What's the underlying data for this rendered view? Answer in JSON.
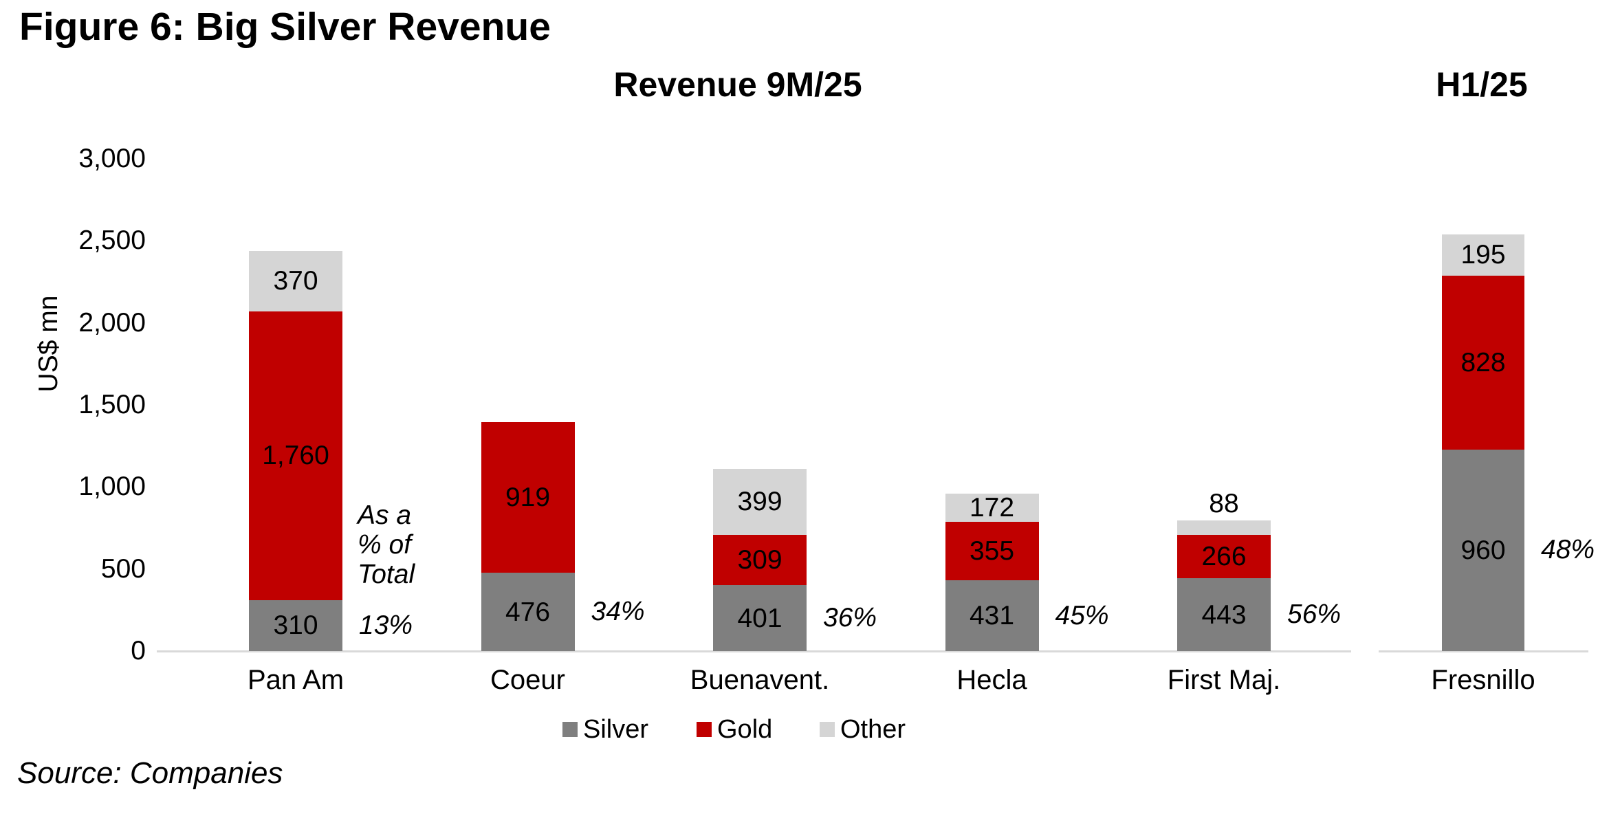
{
  "figure": {
    "title": "Figure 6: Big Silver Revenue",
    "source": "Source: Companies"
  },
  "annotation": {
    "lines": [
      "As a",
      "% of",
      "Total"
    ]
  },
  "colors": {
    "silver": "#7F7F7F",
    "gold": "#C00000",
    "other": "#D5D5D5",
    "axis_line": "#D9D9D9",
    "text": "#000000"
  },
  "chart_data": [
    {
      "type": "bar",
      "stacked": true,
      "panel_title": "Revenue 9M/25",
      "ylabel": "US$ mn",
      "ylim": [
        0,
        3000
      ],
      "grid": false,
      "legend_position": "bottom",
      "yticks": [
        {
          "value": 0,
          "label": "0"
        },
        {
          "value": 500,
          "label": "500"
        },
        {
          "value": 1000,
          "label": "1,000"
        },
        {
          "value": 1500,
          "label": "1,500"
        },
        {
          "value": 2000,
          "label": "2,000"
        },
        {
          "value": 2500,
          "label": "2,500"
        },
        {
          "value": 3000,
          "label": "3,000"
        }
      ],
      "categories": [
        "Pan Am",
        "Coeur",
        "Buenavent.",
        "Hecla",
        "First Maj."
      ],
      "series": [
        {
          "name": "Silver",
          "color": "#7F7F7F",
          "values": [
            310,
            476,
            401,
            431,
            443
          ],
          "labels": [
            "310",
            "476",
            "401",
            "431",
            "443"
          ]
        },
        {
          "name": "Gold",
          "color": "#C00000",
          "values": [
            1760,
            919,
            309,
            355,
            266
          ],
          "labels": [
            "1,760",
            "919",
            "309",
            "355",
            "266"
          ]
        },
        {
          "name": "Other",
          "color": "#D5D5D5",
          "values": [
            370,
            0,
            399,
            172,
            88
          ],
          "labels": [
            "370",
            "",
            "399",
            "172",
            "88"
          ]
        }
      ],
      "pct_of_total": [
        "13%",
        "34%",
        "36%",
        "45%",
        "56%"
      ]
    },
    {
      "type": "bar",
      "stacked": true,
      "panel_title": "H1/25",
      "grid": false,
      "categories": [
        "Fresnillo"
      ],
      "series": [
        {
          "name": "Silver",
          "color": "#7F7F7F",
          "values": [
            960
          ],
          "labels": [
            "960"
          ]
        },
        {
          "name": "Gold",
          "color": "#C00000",
          "values": [
            828
          ],
          "labels": [
            "828"
          ]
        },
        {
          "name": "Other",
          "color": "#D5D5D5",
          "values": [
            195
          ],
          "labels": [
            "195"
          ]
        }
      ],
      "pct_of_total": [
        "48%"
      ]
    }
  ],
  "legend": [
    {
      "label": "Silver",
      "color": "#7F7F7F"
    },
    {
      "label": "Gold",
      "color": "#C00000"
    },
    {
      "label": "Other",
      "color": "#D5D5D5"
    }
  ]
}
